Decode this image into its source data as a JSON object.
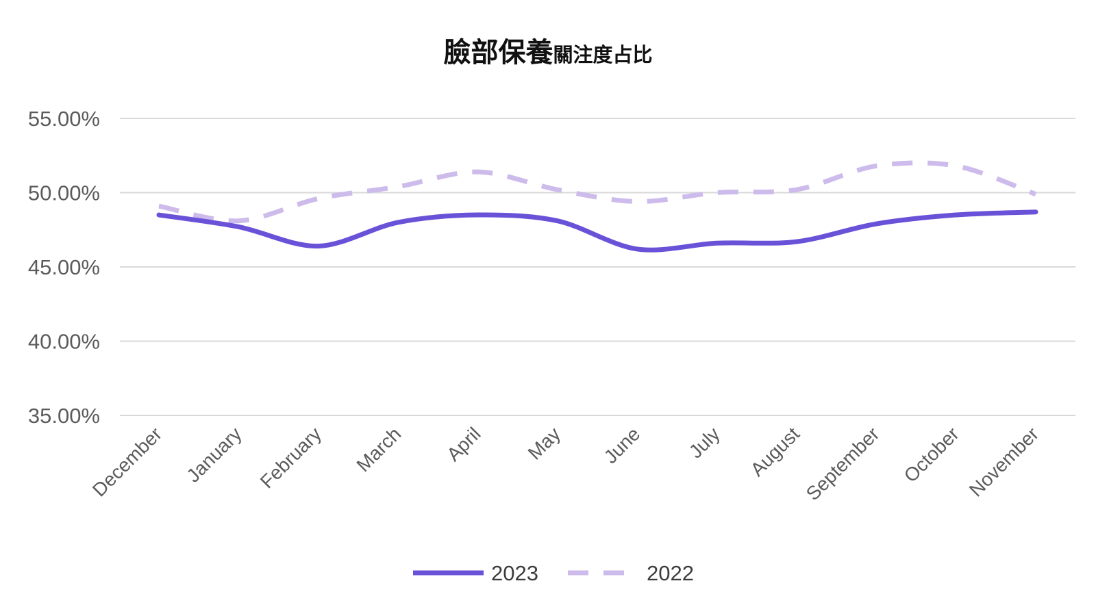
{
  "chart_data": {
    "type": "line",
    "title": "臉部保養",
    "title_suffix": "關注度占比",
    "xlabel": "",
    "ylabel": "",
    "categories": [
      "December",
      "January",
      "February",
      "March",
      "April",
      "May",
      "June",
      "July",
      "August",
      "September",
      "October",
      "November"
    ],
    "y_ticks": [
      "35.00%",
      "40.00%",
      "45.00%",
      "50.00%",
      "55.00%"
    ],
    "ylim": [
      35,
      55
    ],
    "grid": true,
    "legend_position": "bottom",
    "series": [
      {
        "name": "2023",
        "style": "solid",
        "color": "#6a52d8",
        "values": [
          48.5,
          47.7,
          46.4,
          48.0,
          48.5,
          48.1,
          46.2,
          46.6,
          46.7,
          47.9,
          48.5,
          48.7
        ]
      },
      {
        "name": "2022",
        "style": "dashed",
        "color": "#cdbbeb",
        "values": [
          49.1,
          48.1,
          49.6,
          50.4,
          51.4,
          50.2,
          49.4,
          50.0,
          50.2,
          51.8,
          51.8,
          49.9
        ]
      }
    ]
  }
}
